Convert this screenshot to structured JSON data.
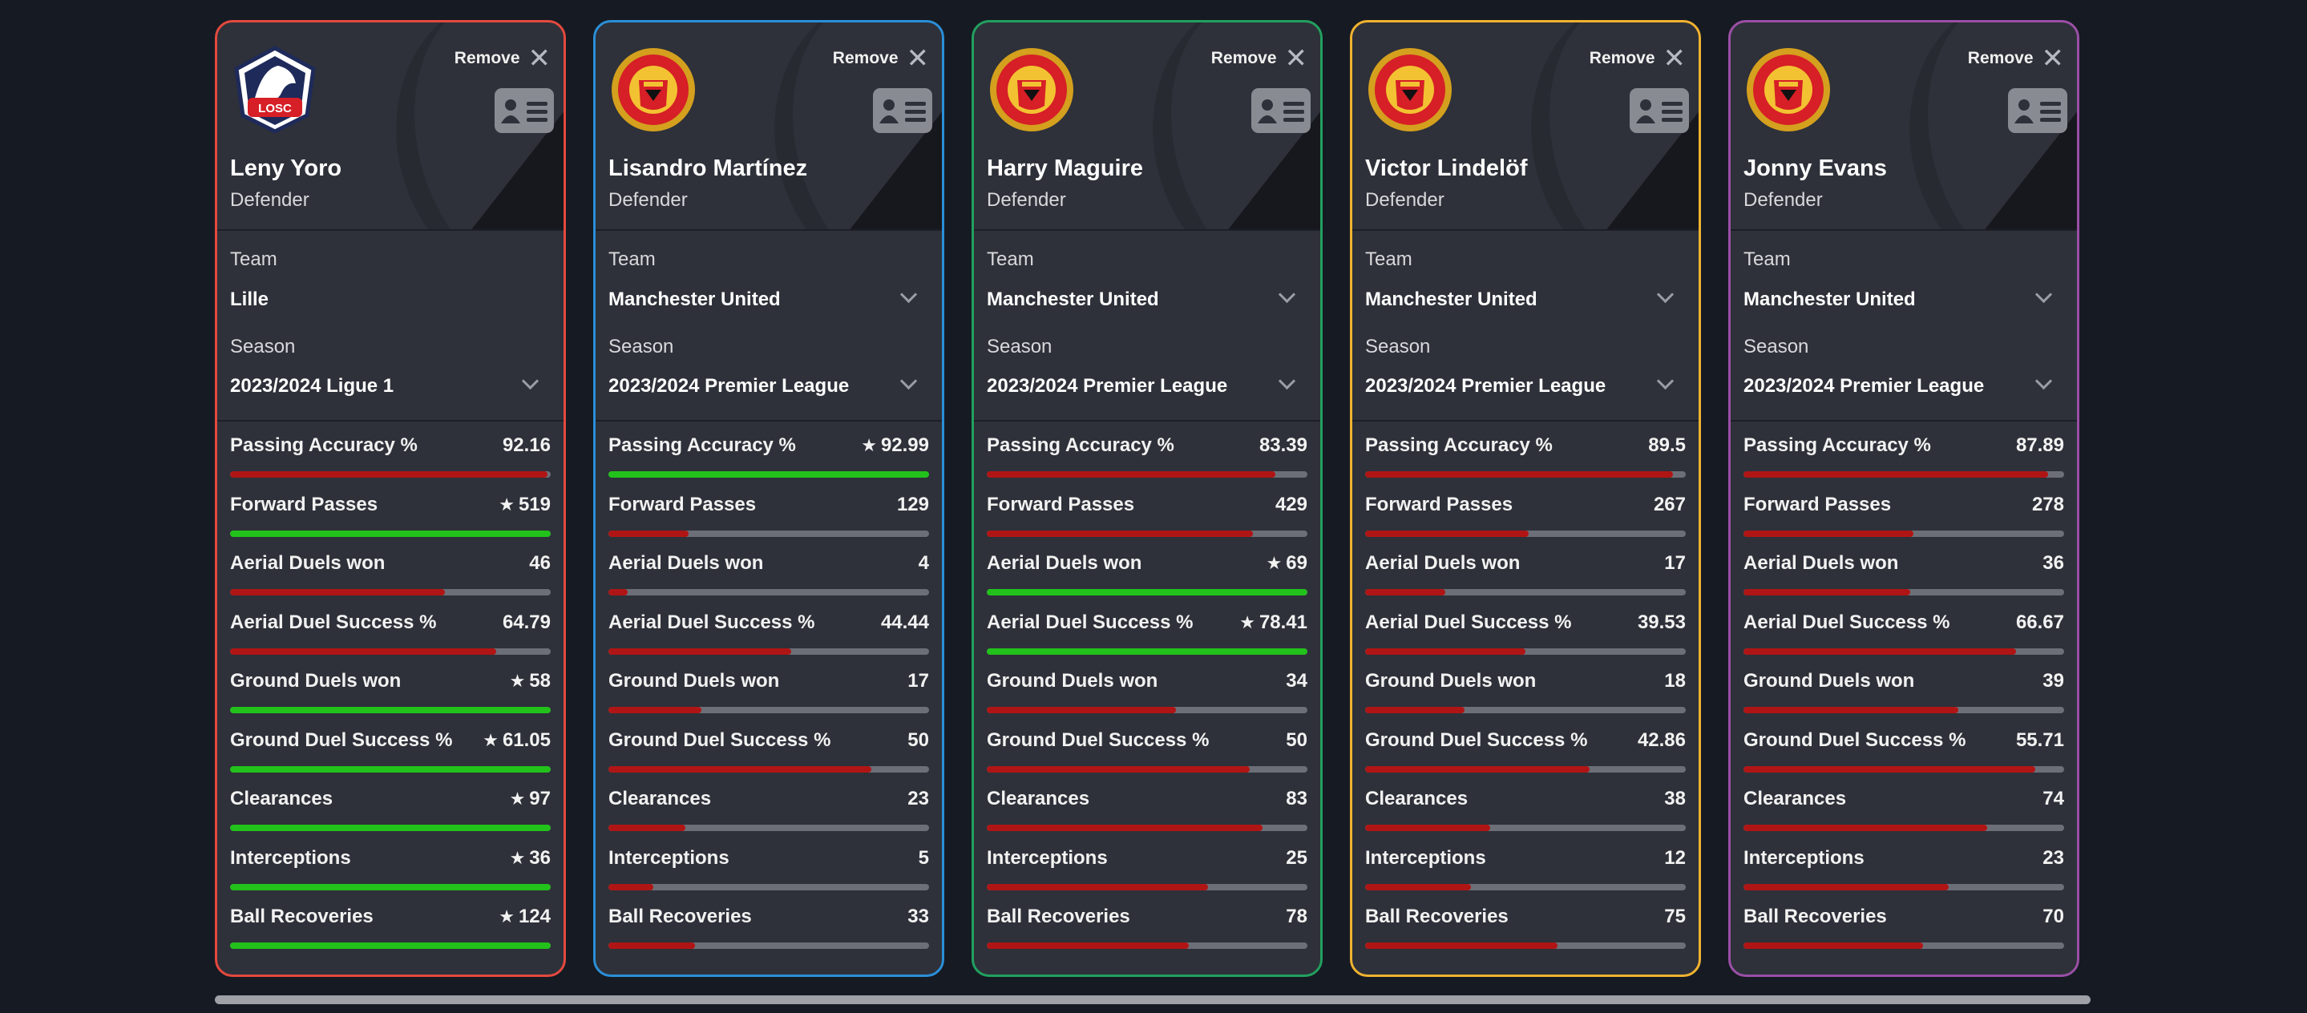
{
  "remove_label": "Remove",
  "team_label": "Team",
  "season_label": "Season",
  "colors": {
    "best": "#22c21b",
    "normal": "#b01515",
    "track": "#6c6f77"
  },
  "stat_names": [
    "Passing Accuracy %",
    "Forward Passes",
    "Aerial Duels won",
    "Aerial Duel Success %",
    "Ground Duels won",
    "Ground Duel Success %",
    "Clearances",
    "Interceptions",
    "Ball Recoveries"
  ],
  "players": [
    {
      "name": "Leny Yoro",
      "position": "Defender",
      "crest": "losc-crest-icon",
      "crest_text": "LOSC",
      "border": "#e4493f",
      "team": "Lille",
      "team_dropdown": false,
      "season": "2023/2024 Ligue 1",
      "stats": [
        {
          "value": "92.16",
          "fraction": 0.99,
          "best": false
        },
        {
          "value": "519",
          "fraction": 1.0,
          "best": true
        },
        {
          "value": "46",
          "fraction": 0.67,
          "best": false
        },
        {
          "value": "64.79",
          "fraction": 0.83,
          "best": false
        },
        {
          "value": "58",
          "fraction": 1.0,
          "best": true
        },
        {
          "value": "61.05",
          "fraction": 1.0,
          "best": true
        },
        {
          "value": "97",
          "fraction": 1.0,
          "best": true
        },
        {
          "value": "36",
          "fraction": 1.0,
          "best": true
        },
        {
          "value": "124",
          "fraction": 1.0,
          "best": true
        }
      ]
    },
    {
      "name": "Lisandro Martínez",
      "position": "Defender",
      "crest": "manchester-united-crest-icon",
      "border": "#2a8fd8",
      "team": "Manchester United",
      "team_dropdown": true,
      "season": "2023/2024 Premier League",
      "stats": [
        {
          "value": "92.99",
          "fraction": 1.0,
          "best": true
        },
        {
          "value": "129",
          "fraction": 0.25,
          "best": false
        },
        {
          "value": "4",
          "fraction": 0.06,
          "best": false
        },
        {
          "value": "44.44",
          "fraction": 0.57,
          "best": false
        },
        {
          "value": "17",
          "fraction": 0.29,
          "best": false
        },
        {
          "value": "50",
          "fraction": 0.82,
          "best": false
        },
        {
          "value": "23",
          "fraction": 0.24,
          "best": false
        },
        {
          "value": "5",
          "fraction": 0.14,
          "best": false
        },
        {
          "value": "33",
          "fraction": 0.27,
          "best": false
        }
      ]
    },
    {
      "name": "Harry Maguire",
      "position": "Defender",
      "crest": "manchester-united-crest-icon",
      "border": "#22a05f",
      "team": "Manchester United",
      "team_dropdown": true,
      "season": "2023/2024 Premier League",
      "stats": [
        {
          "value": "83.39",
          "fraction": 0.9,
          "best": false
        },
        {
          "value": "429",
          "fraction": 0.83,
          "best": false
        },
        {
          "value": "69",
          "fraction": 1.0,
          "best": true
        },
        {
          "value": "78.41",
          "fraction": 1.0,
          "best": true
        },
        {
          "value": "34",
          "fraction": 0.59,
          "best": false
        },
        {
          "value": "50",
          "fraction": 0.82,
          "best": false
        },
        {
          "value": "83",
          "fraction": 0.86,
          "best": false
        },
        {
          "value": "25",
          "fraction": 0.69,
          "best": false
        },
        {
          "value": "78",
          "fraction": 0.63,
          "best": false
        }
      ]
    },
    {
      "name": "Victor Lindelöf",
      "position": "Defender",
      "crest": "manchester-united-crest-icon",
      "border": "#f0b230",
      "team": "Manchester United",
      "team_dropdown": true,
      "season": "2023/2024 Premier League",
      "stats": [
        {
          "value": "89.5",
          "fraction": 0.96,
          "best": false
        },
        {
          "value": "267",
          "fraction": 0.51,
          "best": false
        },
        {
          "value": "17",
          "fraction": 0.25,
          "best": false
        },
        {
          "value": "39.53",
          "fraction": 0.5,
          "best": false
        },
        {
          "value": "18",
          "fraction": 0.31,
          "best": false
        },
        {
          "value": "42.86",
          "fraction": 0.7,
          "best": false
        },
        {
          "value": "38",
          "fraction": 0.39,
          "best": false
        },
        {
          "value": "12",
          "fraction": 0.33,
          "best": false
        },
        {
          "value": "75",
          "fraction": 0.6,
          "best": false
        }
      ]
    },
    {
      "name": "Jonny Evans",
      "position": "Defender",
      "crest": "manchester-united-crest-icon",
      "border": "#9a4fa6",
      "team": "Manchester United",
      "team_dropdown": true,
      "season": "2023/2024 Premier League",
      "stats": [
        {
          "value": "87.89",
          "fraction": 0.95,
          "best": false
        },
        {
          "value": "278",
          "fraction": 0.53,
          "best": false
        },
        {
          "value": "36",
          "fraction": 0.52,
          "best": false
        },
        {
          "value": "66.67",
          "fraction": 0.85,
          "best": false
        },
        {
          "value": "39",
          "fraction": 0.67,
          "best": false
        },
        {
          "value": "55.71",
          "fraction": 0.91,
          "best": false
        },
        {
          "value": "74",
          "fraction": 0.76,
          "best": false
        },
        {
          "value": "23",
          "fraction": 0.64,
          "best": false
        },
        {
          "value": "70",
          "fraction": 0.56,
          "best": false
        }
      ]
    }
  ]
}
